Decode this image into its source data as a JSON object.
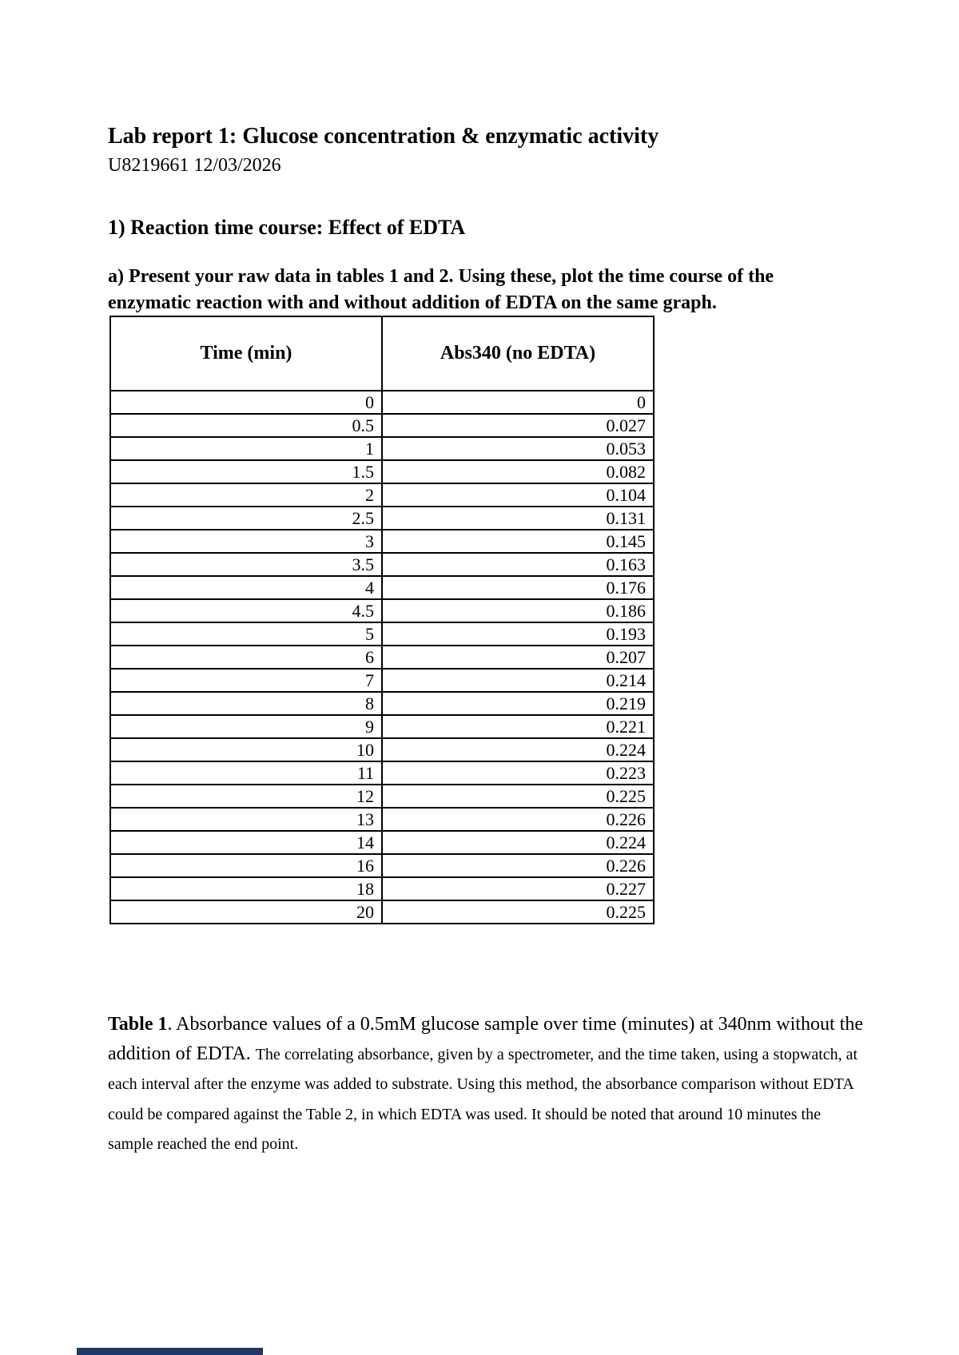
{
  "document": {
    "title": "Lab report 1: Glucose concentration & enzymatic activity",
    "author_line": "U8219661 12/03/2026",
    "section_heading": "1) Reaction time course: Effect of EDTA",
    "question": "a) Present your raw data in tables 1 and 2. Using these, plot the time course of the enzymatic reaction with and without addition of EDTA on the same graph."
  },
  "table": {
    "columns": [
      "Time (min)",
      "Abs340 (no EDTA)"
    ]
  },
  "chart_data": {
    "type": "table",
    "title": "Table 1",
    "columns": [
      "Time (min)",
      "Abs340 (no EDTA)"
    ],
    "x": [
      0,
      0.5,
      1,
      1.5,
      2,
      2.5,
      3,
      3.5,
      4,
      4.5,
      5,
      6,
      7,
      8,
      9,
      10,
      11,
      12,
      13,
      14,
      16,
      18,
      20
    ],
    "series": [
      {
        "name": "Abs340 (no EDTA)",
        "values": [
          0,
          0.027,
          0.053,
          0.082,
          0.104,
          0.131,
          0.145,
          0.163,
          0.176,
          0.186,
          0.193,
          0.207,
          0.214,
          0.219,
          0.221,
          0.224,
          0.223,
          0.225,
          0.226,
          0.224,
          0.226,
          0.227,
          0.225
        ]
      }
    ]
  },
  "caption": {
    "label": "Table 1",
    "lead": ". Absorbance values of a 0.5mM glucose sample over time (minutes) at 340nm without the addition of EDTA. ",
    "detail": "The correlating absorbance, given by a spectrometer, and the time taken, using a stopwatch, at each interval after the enzyme was added to substrate. Using this method, the absorbance comparison without EDTA could be compared against the Table 2, in which EDTA was used. It should be noted that around 10 minutes the sample reached the end point."
  },
  "decoration": {
    "bottom_fragment_color": "#1f3864"
  }
}
